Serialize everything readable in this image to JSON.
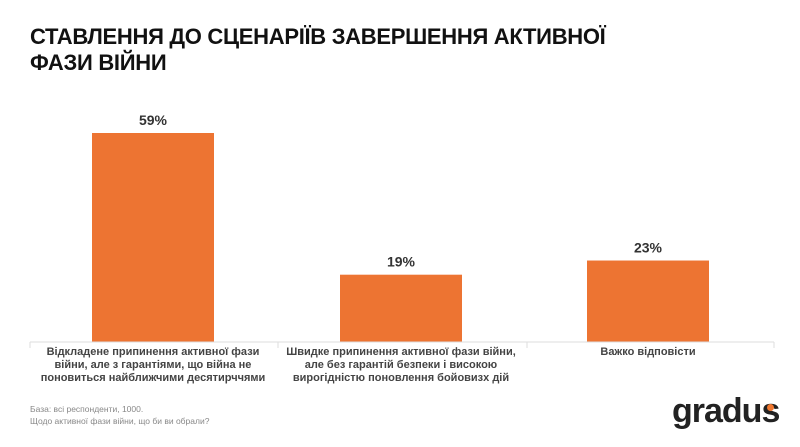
{
  "chart_data": {
    "type": "bar",
    "title": "СТАВЛЕННЯ ДО СЦЕНАРІЇВ ЗАВЕРШЕННЯ АКТИВНОЇ ФАЗИ ВІЙНИ",
    "categories": [
      "Відкладене припинення активної фази війни, але з гарантіями, що війна не поновиться найближчими десятирччями",
      "Швидке припинення активної фази війни, але без гарантій безпеки і високою вирогідністю поновлення бойовизх дій",
      "Важко відповісти"
    ],
    "values": [
      59,
      19,
      23
    ],
    "data_labels": [
      "59%",
      "19%",
      "23%"
    ],
    "ylim": [
      0,
      60
    ],
    "grid": false,
    "color": "#ED7432"
  },
  "footer": {
    "base": "База: всі респонденти, 1000.",
    "question": "Щодо активної фази війни, що би ви обрали?"
  },
  "logo": {
    "text": "gradus",
    "accent": "#F07830"
  }
}
